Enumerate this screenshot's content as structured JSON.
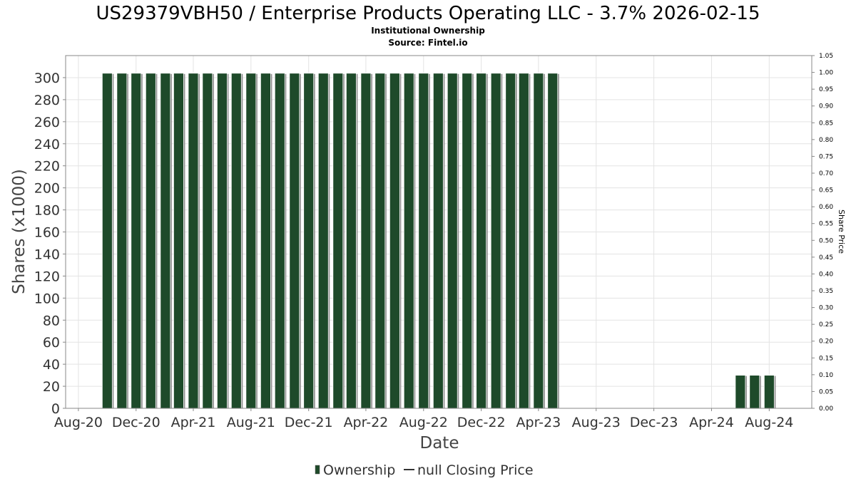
{
  "chart_data": {
    "type": "bar",
    "title": "US29379VBH50 / Enterprise Products Operating LLC - 3.7% 2026-02-15",
    "subtitle_lines": [
      "Institutional Ownership",
      "Source: Fintel.io"
    ],
    "xlabel": "Date",
    "ylabel": "Shares (x1000)",
    "y2label": "Share Price",
    "ylim": [
      0,
      320
    ],
    "yticks": [
      0,
      20,
      40,
      60,
      80,
      100,
      120,
      140,
      160,
      180,
      200,
      220,
      240,
      260,
      280,
      300
    ],
    "y2lim": [
      0,
      1.05
    ],
    "y2ticks": [
      "0.00",
      "0.05",
      "0.10",
      "0.15",
      "0.20",
      "0.25",
      "0.30",
      "0.35",
      "0.40",
      "0.45",
      "0.50",
      "0.55",
      "0.60",
      "0.65",
      "0.70",
      "0.75",
      "0.80",
      "0.85",
      "0.90",
      "0.95",
      "1.00",
      "1.05"
    ],
    "xlim": [
      "2020-07-05",
      "2024-10-30"
    ],
    "xticks": [
      {
        "label": "Aug-20",
        "date": "2020-08-01"
      },
      {
        "label": "Dec-20",
        "date": "2020-12-01"
      },
      {
        "label": "Apr-21",
        "date": "2021-04-01"
      },
      {
        "label": "Aug-21",
        "date": "2021-08-01"
      },
      {
        "label": "Dec-21",
        "date": "2021-12-01"
      },
      {
        "label": "Apr-22",
        "date": "2022-04-01"
      },
      {
        "label": "Aug-22",
        "date": "2022-08-01"
      },
      {
        "label": "Dec-22",
        "date": "2022-12-01"
      },
      {
        "label": "Apr-23",
        "date": "2023-04-01"
      },
      {
        "label": "Aug-23",
        "date": "2023-08-01"
      },
      {
        "label": "Dec-23",
        "date": "2023-12-01"
      },
      {
        "label": "Apr-24",
        "date": "2024-04-01"
      },
      {
        "label": "Aug-24",
        "date": "2024-08-01"
      }
    ],
    "grid": true,
    "legend_placement": "bottom-center",
    "series": [
      {
        "name": "Ownership",
        "color": "#1e4a2a",
        "dates": [
          "2020-10-01",
          "2020-11-01",
          "2020-12-01",
          "2021-01-01",
          "2021-02-01",
          "2021-03-01",
          "2021-04-01",
          "2021-05-01",
          "2021-06-01",
          "2021-07-01",
          "2021-08-01",
          "2021-09-01",
          "2021-10-01",
          "2021-11-01",
          "2021-12-01",
          "2022-01-01",
          "2022-02-01",
          "2022-03-01",
          "2022-04-01",
          "2022-05-01",
          "2022-06-01",
          "2022-07-01",
          "2022-08-01",
          "2022-09-01",
          "2022-10-01",
          "2022-11-01",
          "2022-12-01",
          "2023-01-01",
          "2023-02-01",
          "2023-03-01",
          "2023-04-01",
          "2023-05-01",
          "2024-06-01",
          "2024-07-01",
          "2024-08-01"
        ],
        "values": [
          304,
          304,
          304,
          304,
          304,
          304,
          304,
          304,
          304,
          304,
          304,
          304,
          304,
          304,
          304,
          304,
          304,
          304,
          304,
          304,
          304,
          304,
          304,
          304,
          304,
          304,
          304,
          304,
          304,
          304,
          304,
          304,
          30,
          30,
          30
        ]
      },
      {
        "name": "null Closing Price",
        "color": "#333333",
        "values": []
      }
    ]
  }
}
